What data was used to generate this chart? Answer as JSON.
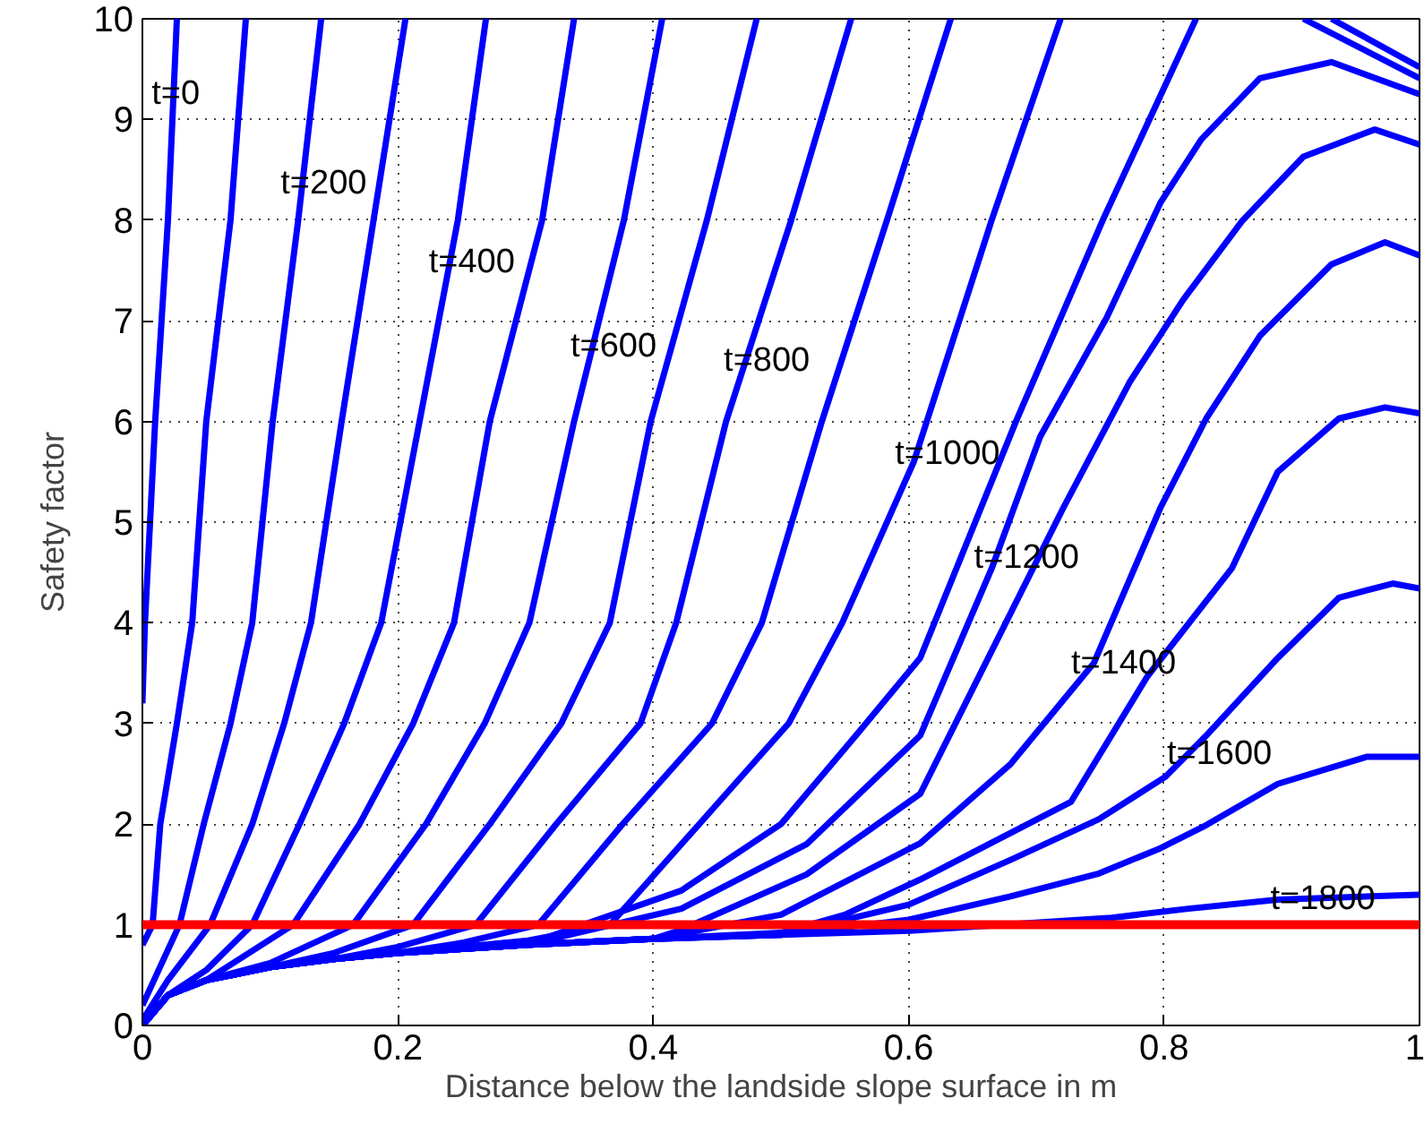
{
  "chart_data": {
    "type": "line",
    "xlabel": "Distance below the landside slope surface in m",
    "ylabel": "Safety factor",
    "xlim": [
      0,
      1
    ],
    "ylim": [
      0,
      10
    ],
    "xticks": [
      0,
      0.2,
      0.4,
      0.6,
      0.8,
      1
    ],
    "yticks": [
      0,
      1,
      2,
      3,
      4,
      5,
      6,
      7,
      8,
      9,
      10
    ],
    "grid": true,
    "series": [
      {
        "color": "#0000ff",
        "x": [
          0,
          0.002,
          0.01,
          0.02,
          0.027
        ],
        "values": [
          3.2,
          4,
          6,
          8,
          10
        ]
      },
      {
        "color": "#0000ff",
        "x": [
          0,
          0.008,
          0.014,
          0.027,
          0.039,
          0.05,
          0.069,
          0.081
        ],
        "values": [
          0.8,
          1,
          2,
          3,
          4,
          6,
          8,
          10
        ]
      },
      {
        "color": "#0000ff",
        "x": [
          0,
          0.029,
          0.048,
          0.069,
          0.086,
          0.102,
          0.122,
          0.14
        ],
        "values": [
          0.2,
          1,
          2,
          3,
          4,
          6,
          8,
          10
        ]
      },
      {
        "color": "#0000ff",
        "x": [
          0,
          0.02,
          0.053,
          0.086,
          0.111,
          0.132,
          0.156,
          0.181,
          0.206
        ],
        "values": [
          0.05,
          0.45,
          1,
          2,
          3,
          4,
          6,
          8,
          10
        ]
      },
      {
        "color": "#0000ff",
        "x": [
          0,
          0.02,
          0.05,
          0.086,
          0.123,
          0.158,
          0.187,
          0.217,
          0.247,
          0.269
        ],
        "values": [
          0,
          0.3,
          0.55,
          1,
          2,
          3,
          4,
          6,
          8,
          10
        ]
      },
      {
        "color": "#0000ff",
        "x": [
          0,
          0.02,
          0.05,
          0.118,
          0.17,
          0.212,
          0.244,
          0.272,
          0.313,
          0.338
        ],
        "values": [
          0,
          0.3,
          0.45,
          1,
          2,
          3,
          4,
          6,
          8,
          10
        ]
      },
      {
        "color": "#0000ff",
        "x": [
          0,
          0.02,
          0.05,
          0.1,
          0.165,
          0.222,
          0.268,
          0.303,
          0.338,
          0.377,
          0.407
        ],
        "values": [
          0,
          0.3,
          0.45,
          0.62,
          1,
          2,
          3,
          4,
          6,
          8,
          10
        ]
      },
      {
        "color": "#0000ff",
        "x": [
          0,
          0.02,
          0.05,
          0.1,
          0.15,
          0.212,
          0.272,
          0.328,
          0.366,
          0.398,
          0.442,
          0.481
        ],
        "values": [
          0,
          0.3,
          0.45,
          0.58,
          0.72,
          1,
          2,
          3,
          4,
          6,
          8,
          10
        ]
      },
      {
        "color": "#0000ff",
        "x": [
          0,
          0.02,
          0.05,
          0.1,
          0.15,
          0.2,
          0.261,
          0.324,
          0.39,
          0.418,
          0.457,
          0.508,
          0.555
        ],
        "values": [
          0,
          0.3,
          0.45,
          0.58,
          0.66,
          0.78,
          1,
          2,
          3,
          4,
          6,
          8,
          10
        ]
      },
      {
        "color": "#0000ff",
        "x": [
          0,
          0.02,
          0.05,
          0.1,
          0.15,
          0.2,
          0.25,
          0.31,
          0.376,
          0.446,
          0.485,
          0.532,
          0.583,
          0.633
        ],
        "values": [
          0,
          0.3,
          0.45,
          0.58,
          0.66,
          0.72,
          0.82,
          1,
          2,
          3,
          4,
          6,
          8,
          10
        ]
      },
      {
        "color": "#0000ff",
        "x": [
          0,
          0.02,
          0.05,
          0.1,
          0.15,
          0.2,
          0.3,
          0.366,
          0.436,
          0.506,
          0.548,
          0.604,
          0.665,
          0.719,
          0.8,
          0.931,
          1
        ],
        "values": [
          0,
          0.3,
          0.45,
          0.58,
          0.66,
          0.72,
          0.84,
          1,
          2,
          3,
          4,
          5.6,
          8,
          10,
          null,
          10,
          9.52
        ]
      },
      {
        "color": "#0000ff",
        "x": [
          0,
          0.02,
          0.05,
          0.1,
          0.15,
          0.2,
          0.3,
          0.422,
          0.5,
          0.56,
          0.609,
          0.684,
          0.752,
          0.825,
          0.87,
          0.909,
          1
        ],
        "values": [
          0,
          0.3,
          0.45,
          0.58,
          0.66,
          0.72,
          0.8,
          1.34,
          2,
          2.9,
          3.65,
          6,
          8,
          10,
          null,
          10,
          9.41
        ]
      },
      {
        "color": "#0000ff",
        "x": [
          0,
          0.02,
          0.05,
          0.1,
          0.15,
          0.2,
          0.3,
          0.422,
          0.52,
          0.609,
          0.665,
          0.703,
          0.755,
          0.797,
          0.829,
          0.875,
          0.931,
          1
        ],
        "values": [
          0,
          0.3,
          0.45,
          0.58,
          0.66,
          0.72,
          0.8,
          1.16,
          1.8,
          2.88,
          4.54,
          5.85,
          7.03,
          8.17,
          8.8,
          9.41,
          9.57,
          9.25
        ]
      },
      {
        "color": "#0000ff",
        "x": [
          0,
          0.02,
          0.05,
          0.1,
          0.15,
          0.2,
          0.3,
          0.4,
          0.422,
          0.52,
          0.609,
          0.721,
          0.773,
          0.815,
          0.861,
          0.909,
          0.965,
          1
        ],
        "values": [
          0,
          0.3,
          0.45,
          0.58,
          0.66,
          0.72,
          0.8,
          0.86,
          0.95,
          1.5,
          2.3,
          5.14,
          6.39,
          7.21,
          7.99,
          8.63,
          8.9,
          8.75
        ]
      },
      {
        "color": "#0000ff",
        "x": [
          0,
          0.02,
          0.05,
          0.1,
          0.15,
          0.2,
          0.3,
          0.4,
          0.5,
          0.609,
          0.68,
          0.745,
          0.797,
          0.833,
          0.875,
          0.931,
          0.973,
          1
        ],
        "values": [
          0,
          0.3,
          0.45,
          0.58,
          0.66,
          0.72,
          0.8,
          0.86,
          1.1,
          1.81,
          2.6,
          3.6,
          5.14,
          6.03,
          6.85,
          7.56,
          7.78,
          7.65
        ]
      },
      {
        "color": "#0000ff",
        "x": [
          0,
          0.02,
          0.05,
          0.1,
          0.15,
          0.2,
          0.3,
          0.4,
          0.5,
          0.55,
          0.609,
          0.727,
          0.787,
          0.853,
          0.889,
          0.937,
          0.973,
          1
        ],
        "values": [
          0,
          0.3,
          0.45,
          0.58,
          0.66,
          0.72,
          0.8,
          0.86,
          0.92,
          1.1,
          1.45,
          2.22,
          3.47,
          4.54,
          5.5,
          6.03,
          6.14,
          6.08
        ]
      },
      {
        "color": "#0000ff",
        "x": [
          0,
          0.02,
          0.05,
          0.1,
          0.15,
          0.2,
          0.3,
          0.4,
          0.5,
          0.6,
          0.679,
          0.749,
          0.801,
          0.833,
          0.889,
          0.937,
          0.979,
          1
        ],
        "values": [
          0,
          0.3,
          0.45,
          0.58,
          0.66,
          0.72,
          0.8,
          0.86,
          0.9,
          1.2,
          1.64,
          2.05,
          2.47,
          2.88,
          3.65,
          4.25,
          4.39,
          4.34
        ]
      },
      {
        "color": "#0000ff",
        "x": [
          0,
          0.02,
          0.05,
          0.1,
          0.15,
          0.2,
          0.3,
          0.4,
          0.5,
          0.6,
          0.679,
          0.749,
          0.797,
          0.833,
          0.889,
          0.959,
          1
        ],
        "values": [
          0,
          0.3,
          0.45,
          0.58,
          0.66,
          0.72,
          0.8,
          0.86,
          0.9,
          1.05,
          1.28,
          1.51,
          1.76,
          1.99,
          2.4,
          2.67,
          2.67
        ]
      },
      {
        "color": "#0000ff",
        "x": [
          0,
          0.02,
          0.05,
          0.1,
          0.15,
          0.2,
          0.3,
          0.4,
          0.5,
          0.6,
          0.65,
          0.759,
          0.819,
          0.889,
          1
        ],
        "values": [
          0,
          0.3,
          0.45,
          0.58,
          0.66,
          0.72,
          0.8,
          0.86,
          0.9,
          0.94,
          0.98,
          1.07,
          1.16,
          1.25,
          1.3
        ]
      }
    ],
    "ref_lines": [
      {
        "axis": "y",
        "value": 1,
        "color": "#ff0000"
      }
    ],
    "annotations": [
      {
        "text": "t=0",
        "x": 0.024,
        "y": 9.25
      },
      {
        "text": "t=200",
        "x": 0.125,
        "y": 8.36
      },
      {
        "text": "t=400",
        "x": 0.241,
        "y": 7.58
      },
      {
        "text": "t=600",
        "x": 0.352,
        "y": 6.74
      },
      {
        "text": "t=800",
        "x": 0.472,
        "y": 6.6
      },
      {
        "text": "t=1000",
        "x": 0.606,
        "y": 5.68
      },
      {
        "text": "t=1200",
        "x": 0.668,
        "y": 4.64
      },
      {
        "text": "t=1400",
        "x": 0.744,
        "y": 3.59
      },
      {
        "text": "t=1600",
        "x": 0.819,
        "y": 2.7
      },
      {
        "text": "t=1800",
        "x": 0.9,
        "y": 1.255
      }
    ]
  }
}
